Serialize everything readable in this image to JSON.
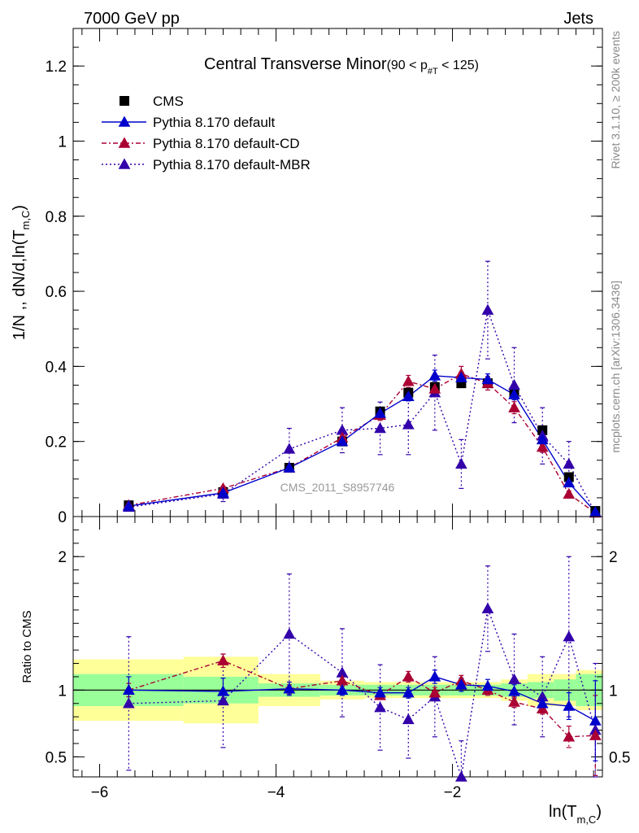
{
  "header": {
    "left": "7000 GeV pp",
    "right": "Jets"
  },
  "side_text": {
    "rivet": "Rivet 3.1.10, ≥ 200k events",
    "mcplots": "mcplots.cern.ch [arXiv:1306.3436]"
  },
  "watermark": "CMS_2011_S8957746",
  "chart_data": {
    "type": "line",
    "title_main": "Central Transverse Minor",
    "title_range_left": "(90 < p",
    "title_range_sub": "#T",
    "title_range_right": " < 125)",
    "xlabel_main": "ln(T",
    "xlabel_sub": "m,C",
    "xlabel_close": ")",
    "ylabel_main": "1/N ,, dN/d,ln(T",
    "ylabel_sub": "m,C",
    "ylabel_close": ")",
    "ratio_ylabel": "Ratio to CMS",
    "xlim": [
      -6.3,
      -0.3
    ],
    "ylim": [
      0,
      1.3
    ],
    "ratio_ylim": [
      0.35,
      2.3
    ],
    "x_ticks": [
      -6,
      -4,
      -2
    ],
    "x_tick_labels": [
      "−6",
      "−4",
      "−2"
    ],
    "y_ticks": [
      0,
      0.2,
      0.4,
      0.6,
      0.8,
      1,
      1.2
    ],
    "y_tick_labels": [
      "0",
      "0.2",
      "0.4",
      "0.6",
      "0.8",
      "1",
      "1.2"
    ],
    "ratio_ticks": [
      0.5,
      1,
      2
    ],
    "ratio_tick_labels": [
      "0.5",
      "1",
      "2"
    ],
    "legend": [
      "CMS",
      "Pythia 8.170 default",
      "Pythia 8.170 default-CD",
      "Pythia 8.170 default-MBR"
    ],
    "colors": {
      "cms": "#000000",
      "default": "#0000cc",
      "cd": "#aa0033",
      "mbr": "#3300aa",
      "band_green": "#99ff99",
      "band_yellow": "#ffff99"
    },
    "bins": [
      {
        "lo": -6.3,
        "hi": -5.05
      },
      {
        "lo": -5.05,
        "hi": -4.2
      },
      {
        "lo": -4.2,
        "hi": -3.5
      },
      {
        "lo": -3.5,
        "hi": -3.0
      },
      {
        "lo": -3.0,
        "hi": -2.65
      },
      {
        "lo": -2.65,
        "hi": -2.35
      },
      {
        "lo": -2.35,
        "hi": -2.05
      },
      {
        "lo": -2.05,
        "hi": -1.75
      },
      {
        "lo": -1.75,
        "hi": -1.45
      },
      {
        "lo": -1.45,
        "hi": -1.15
      },
      {
        "lo": -1.15,
        "hi": -0.85
      },
      {
        "lo": -0.85,
        "hi": -0.6
      },
      {
        "lo": -0.6,
        "hi": -0.3
      }
    ],
    "cms": {
      "x": [
        -5.67,
        -4.6,
        -3.85,
        -3.25,
        -2.82,
        -2.5,
        -2.2,
        -1.9,
        -1.6,
        -1.3,
        -0.98,
        -0.68,
        -0.38
      ],
      "y": [
        0.03,
        0.065,
        0.13,
        0.2,
        0.28,
        0.33,
        0.345,
        0.355,
        0.355,
        0.33,
        0.23,
        0.105,
        0.015
      ],
      "band_green": [
        0.12,
        0.1,
        0.05,
        0.04,
        0.04,
        0.04,
        0.04,
        0.04,
        0.04,
        0.05,
        0.06,
        0.08,
        0.12
      ],
      "band_yellow": [
        0.23,
        0.25,
        0.12,
        0.07,
        0.06,
        0.06,
        0.06,
        0.06,
        0.06,
        0.08,
        0.12,
        0.12,
        0.15
      ]
    },
    "series": [
      {
        "key": "default",
        "name": "Pythia 8.170 default",
        "dash": "",
        "x": [
          -5.67,
          -4.6,
          -3.85,
          -3.25,
          -2.82,
          -2.5,
          -2.2,
          -1.9,
          -1.6,
          -1.3,
          -0.98,
          -0.68,
          -0.38
        ],
        "y": [
          0.028,
          0.063,
          0.13,
          0.2,
          0.275,
          0.32,
          0.375,
          0.37,
          0.365,
          0.325,
          0.205,
          0.09,
          0.012
        ],
        "err": [
          0.002,
          0.004,
          0.006,
          0.008,
          0.01,
          0.012,
          0.015,
          0.015,
          0.015,
          0.014,
          0.012,
          0.009,
          0.004
        ],
        "ratio": [
          1.0,
          0.99,
          1.01,
          1.0,
          0.98,
          0.98,
          1.1,
          1.04,
          1.03,
          0.99,
          0.9,
          0.88,
          0.77
        ],
        "ratio_err": [
          0.1,
          0.1,
          0.05,
          0.04,
          0.04,
          0.04,
          0.05,
          0.05,
          0.05,
          0.05,
          0.06,
          0.1,
          0.3
        ]
      },
      {
        "key": "cd",
        "name": "Pythia 8.170 default-CD",
        "dash": "6,3,2,3",
        "x": [
          -5.67,
          -4.6,
          -3.85,
          -3.25,
          -2.82,
          -2.5,
          -2.2,
          -1.9,
          -1.6,
          -1.3,
          -0.98,
          -0.68,
          -0.38
        ],
        "y": [
          0.03,
          0.075,
          0.13,
          0.21,
          0.27,
          0.36,
          0.34,
          0.38,
          0.355,
          0.29,
          0.185,
          0.06,
          0.01
        ],
        "err": [
          0.003,
          0.005,
          0.008,
          0.012,
          0.014,
          0.016,
          0.016,
          0.02,
          0.018,
          0.016,
          0.014,
          0.008,
          0.004
        ],
        "ratio": [
          1.0,
          1.22,
          1.01,
          1.07,
          0.96,
          1.1,
          0.98,
          1.07,
          1.0,
          0.91,
          0.86,
          0.65,
          0.66
        ],
        "ratio_err": [
          0.05,
          0.05,
          0.03,
          0.04,
          0.03,
          0.04,
          0.04,
          0.04,
          0.04,
          0.04,
          0.04,
          0.08,
          0.3
        ]
      },
      {
        "key": "mbr",
        "name": "Pythia 8.170 default-MBR",
        "dash": "2,3",
        "x": [
          -5.67,
          -4.6,
          -3.85,
          -3.25,
          -2.82,
          -2.5,
          -2.2,
          -1.9,
          -1.6,
          -1.3,
          -0.98,
          -0.68,
          -0.38
        ],
        "y": [
          0.025,
          0.06,
          0.18,
          0.23,
          0.235,
          0.245,
          0.33,
          0.14,
          0.55,
          0.35,
          0.215,
          0.14,
          0.01
        ],
        "err": [
          0.008,
          0.02,
          0.055,
          0.06,
          0.07,
          0.08,
          0.1,
          0.065,
          0.13,
          0.1,
          0.075,
          0.06,
          0.006
        ],
        "ratio": [
          0.9,
          0.92,
          1.42,
          1.13,
          0.87,
          0.78,
          0.95,
          0.35,
          1.61,
          1.08,
          0.95,
          1.4,
          0.7
        ],
        "ratio_err": [
          0.5,
          0.35,
          0.45,
          0.33,
          0.32,
          0.29,
          0.3,
          0.27,
          0.32,
          0.34,
          0.3,
          0.6,
          0.5
        ]
      }
    ]
  }
}
